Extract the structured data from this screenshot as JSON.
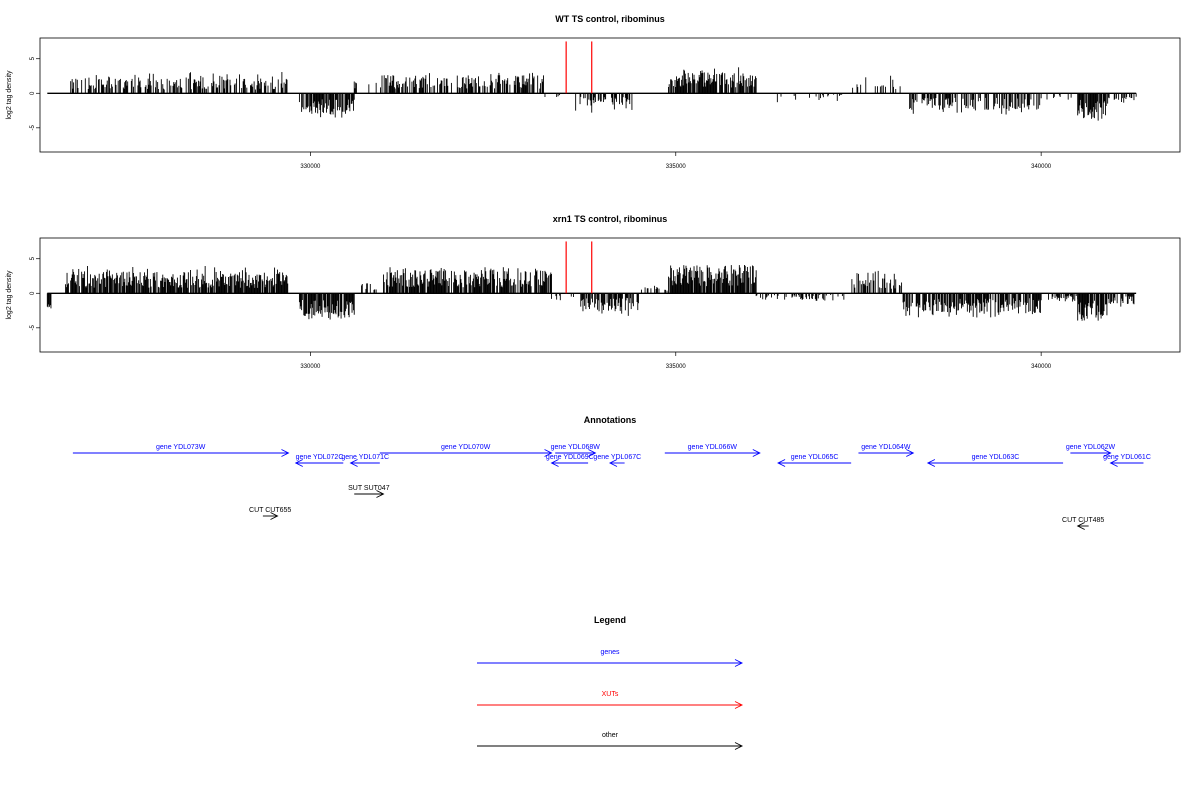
{
  "chart_data": [
    {
      "type": "bar",
      "title": "WT TS control, ribominus",
      "ylabel": "log2 tag density",
      "xlim": [
        326300,
        341900
      ],
      "ylim": [
        -8.5,
        8
      ],
      "y_ticks": [
        5,
        0,
        -5
      ],
      "y_tick_labels": [
        "5",
        "0",
        "-5"
      ],
      "x_ticks": [
        330000,
        335000,
        340000
      ],
      "x_tick_labels": [
        "330000",
        "335000",
        "340000"
      ],
      "track_range": [
        326400,
        341300
      ],
      "red_markers": [
        333500,
        333850
      ],
      "red_marker_height": 7.5,
      "segments": [
        {
          "start": 326400,
          "end": 326700,
          "sign": 1,
          "mean": 0,
          "amp": 0,
          "density": 0.05
        },
        {
          "start": 326700,
          "end": 329700,
          "sign": 1,
          "mean": 1.8,
          "amp": 2.8,
          "density": 0.55
        },
        {
          "start": 329850,
          "end": 330600,
          "sign": -1,
          "mean": 2.5,
          "amp": 3.2,
          "density": 0.8
        },
        {
          "start": 330600,
          "end": 330800,
          "sign": 1,
          "mean": 1.5,
          "amp": 1.5,
          "density": 0.3
        },
        {
          "start": 330900,
          "end": 333200,
          "sign": 1,
          "mean": 2.2,
          "amp": 2.8,
          "density": 0.6
        },
        {
          "start": 333200,
          "end": 333500,
          "sign": -1,
          "mean": 0.5,
          "amp": 0.8,
          "density": 0.2
        },
        {
          "start": 333600,
          "end": 334400,
          "sign": -1,
          "mean": 1.5,
          "amp": 2.6,
          "density": 0.55
        },
        {
          "start": 334900,
          "end": 336100,
          "sign": 1,
          "mean": 2.6,
          "amp": 3.5,
          "density": 0.85
        },
        {
          "start": 336300,
          "end": 337300,
          "sign": -1,
          "mean": 0.6,
          "amp": 1.2,
          "density": 0.2
        },
        {
          "start": 337400,
          "end": 338100,
          "sign": 1,
          "mean": 1.2,
          "amp": 2.5,
          "density": 0.3
        },
        {
          "start": 338200,
          "end": 340000,
          "sign": -1,
          "mean": 2.0,
          "amp": 2.8,
          "density": 0.55
        },
        {
          "start": 340000,
          "end": 340500,
          "sign": -1,
          "mean": 0.8,
          "amp": 1.0,
          "density": 0.2
        },
        {
          "start": 340500,
          "end": 340900,
          "sign": -1,
          "mean": 3.2,
          "amp": 3.8,
          "density": 0.9
        },
        {
          "start": 340900,
          "end": 341300,
          "sign": -1,
          "mean": 1.0,
          "amp": 1.5,
          "density": 0.4
        }
      ]
    },
    {
      "type": "bar",
      "title": "xrn1 TS control, ribominus",
      "ylabel": "log2 tag density",
      "xlim": [
        326300,
        341900
      ],
      "ylim": [
        -8.5,
        8
      ],
      "y_ticks": [
        5,
        0,
        -5
      ],
      "y_tick_labels": [
        "5",
        "0",
        "-5"
      ],
      "x_ticks": [
        330000,
        335000,
        340000
      ],
      "x_tick_labels": [
        "330000",
        "335000",
        "340000"
      ],
      "track_range": [
        326400,
        341300
      ],
      "red_markers": [
        333500,
        333850
      ],
      "red_marker_height": 7.5,
      "segments": [
        {
          "start": 326400,
          "end": 326450,
          "sign": -1,
          "mean": 2.0,
          "amp": 1.8,
          "density": 1.0
        },
        {
          "start": 326650,
          "end": 329700,
          "sign": 1,
          "mean": 2.6,
          "amp": 3.6,
          "density": 0.8
        },
        {
          "start": 329850,
          "end": 330600,
          "sign": -1,
          "mean": 3.2,
          "amp": 3.6,
          "density": 0.85
        },
        {
          "start": 330700,
          "end": 330900,
          "sign": 1,
          "mean": 1.2,
          "amp": 1.5,
          "density": 0.3
        },
        {
          "start": 331000,
          "end": 333300,
          "sign": 1,
          "mean": 2.8,
          "amp": 3.6,
          "density": 0.8
        },
        {
          "start": 333300,
          "end": 333600,
          "sign": -1,
          "mean": 1.0,
          "amp": 1.2,
          "density": 0.3
        },
        {
          "start": 333700,
          "end": 334500,
          "sign": -1,
          "mean": 2.2,
          "amp": 3.0,
          "density": 0.7
        },
        {
          "start": 334500,
          "end": 334900,
          "sign": 1,
          "mean": 0.8,
          "amp": 1.0,
          "density": 0.3
        },
        {
          "start": 334900,
          "end": 336100,
          "sign": 1,
          "mean": 3.4,
          "amp": 3.8,
          "density": 0.9
        },
        {
          "start": 336100,
          "end": 337300,
          "sign": -1,
          "mean": 0.8,
          "amp": 1.0,
          "density": 0.4
        },
        {
          "start": 337400,
          "end": 338100,
          "sign": 1,
          "mean": 1.8,
          "amp": 3.2,
          "density": 0.6
        },
        {
          "start": 338100,
          "end": 340000,
          "sign": -1,
          "mean": 2.4,
          "amp": 3.2,
          "density": 0.75
        },
        {
          "start": 340100,
          "end": 340500,
          "sign": -1,
          "mean": 1.0,
          "amp": 1.3,
          "density": 0.4
        },
        {
          "start": 340500,
          "end": 340900,
          "sign": -1,
          "mean": 3.4,
          "amp": 4.0,
          "density": 0.9
        },
        {
          "start": 340900,
          "end": 341300,
          "sign": -1,
          "mean": 1.4,
          "amp": 1.8,
          "density": 0.6
        }
      ]
    }
  ],
  "annotations": {
    "title": "Annotations",
    "xlim": [
      326300,
      341900
    ],
    "features": [
      {
        "label": "gene YDL073W",
        "start": 326750,
        "end": 329700,
        "strand": "+",
        "row": 1,
        "kind": "gene"
      },
      {
        "label": "gene YDL072C",
        "start": 329800,
        "end": 330450,
        "strand": "-",
        "row": 2,
        "kind": "gene"
      },
      {
        "label": "gene YDL071C",
        "start": 330550,
        "end": 330950,
        "strand": "-",
        "row": 2,
        "kind": "gene"
      },
      {
        "label": "gene YDL070W",
        "start": 330950,
        "end": 333300,
        "strand": "+",
        "row": 1,
        "kind": "gene"
      },
      {
        "label": "gene YDL068W",
        "start": 333350,
        "end": 333900,
        "strand": "+",
        "row": 1,
        "kind": "gene"
      },
      {
        "label": "gene YDL069C",
        "start": 333300,
        "end": 333800,
        "strand": "-",
        "row": 2,
        "kind": "gene"
      },
      {
        "label": "gene YDL067C",
        "start": 334100,
        "end": 334300,
        "strand": "-",
        "row": 2,
        "kind": "gene"
      },
      {
        "label": "gene YDL066W",
        "start": 334850,
        "end": 336150,
        "strand": "+",
        "row": 1,
        "kind": "gene"
      },
      {
        "label": "gene YDL065C",
        "start": 336400,
        "end": 337400,
        "strand": "-",
        "row": 2,
        "kind": "gene"
      },
      {
        "label": "gene YDL064W",
        "start": 337500,
        "end": 338250,
        "strand": "+",
        "row": 1,
        "kind": "gene"
      },
      {
        "label": "gene YDL063C",
        "start": 338450,
        "end": 340300,
        "strand": "-",
        "row": 2,
        "kind": "gene"
      },
      {
        "label": "gene YDL062W",
        "start": 340400,
        "end": 340950,
        "strand": "+",
        "row": 1,
        "kind": "gene"
      },
      {
        "label": "gene YDL061C",
        "start": 340950,
        "end": 341400,
        "strand": "-",
        "row": 2,
        "kind": "gene"
      },
      {
        "label": "SUT SUT047",
        "start": 330600,
        "end": 331000,
        "strand": "+",
        "row": 3,
        "kind": "other"
      },
      {
        "label": "CUT CUT655",
        "start": 329350,
        "end": 329550,
        "strand": "+",
        "row": 4,
        "kind": "other"
      },
      {
        "label": "CUT CUT485",
        "start": 340500,
        "end": 340650,
        "strand": "-",
        "row": 5,
        "kind": "other"
      }
    ]
  },
  "legend": {
    "title": "Legend",
    "items": [
      {
        "label": "genes",
        "color": "#0000ff"
      },
      {
        "label": "XUTs",
        "color": "#ff0000"
      },
      {
        "label": "other",
        "color": "#000000"
      }
    ]
  },
  "colors": {
    "gene": "#0000ff",
    "xut": "#ff0000",
    "other": "#000000",
    "marker": "#ff0000",
    "bars": "#000000"
  }
}
